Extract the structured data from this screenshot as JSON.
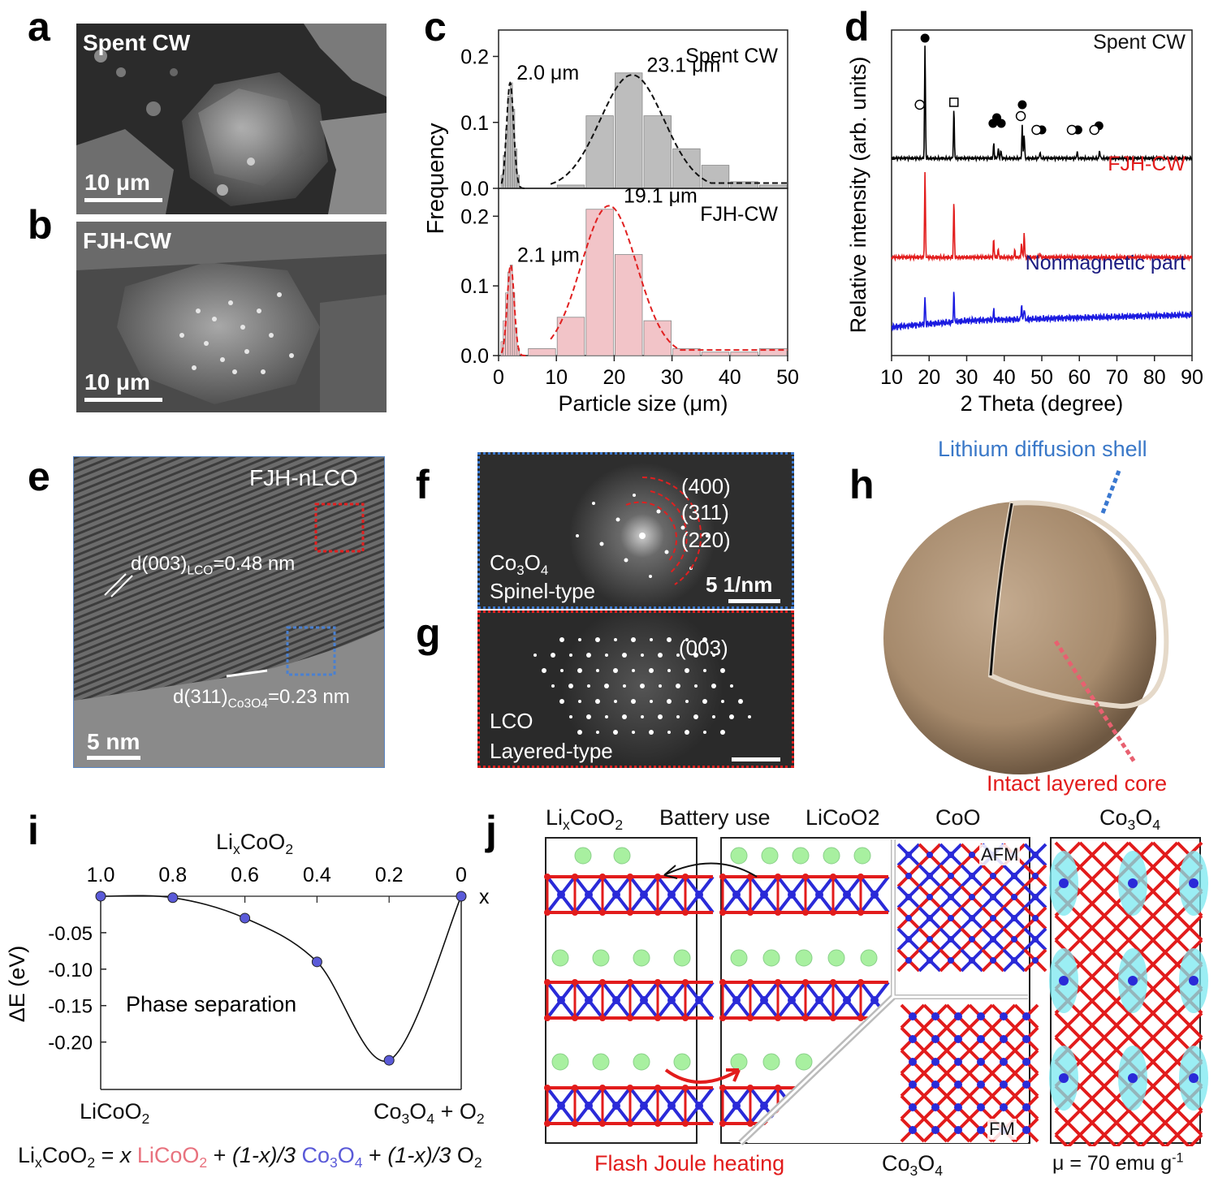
{
  "panels": {
    "a": {
      "label": "a",
      "title": "Spent CW",
      "scale": "10 μm"
    },
    "b": {
      "label": "b",
      "title": "FJH-CW",
      "scale": "10 μm"
    },
    "c": {
      "label": "c"
    },
    "d": {
      "label": "d"
    },
    "e": {
      "label": "e",
      "title": "FJH-nLCO",
      "d003": "d(003)",
      "d003_sub": "LCO",
      "d003_val": "=0.48 nm",
      "d311": "d(311)",
      "d311_sub": "Co3O4",
      "d311_val": "=0.23 nm",
      "scale": "5 nm"
    },
    "f": {
      "label": "f",
      "rings": [
        "(400)",
        "(311)",
        "(220)"
      ],
      "name_main": "Co",
      "name_sub1": "3",
      "name_mid": "O",
      "name_sub2": "4",
      "type": "Spinel-type",
      "scale": "5 1/nm"
    },
    "g": {
      "label": "g",
      "ring": "(003)",
      "name": "LCO",
      "type": "Layered-type"
    },
    "h": {
      "label": "h",
      "shell": "Lithium diffusion shell",
      "core": "Intact layered core"
    },
    "i": {
      "label": "i",
      "top_axis_main": "Li",
      "top_axis_sub": "x",
      "top_axis_rest": "CoO",
      "top_axis_sub2": "2",
      "y_label": "ΔE (eV)",
      "x_var": "x",
      "phase": "Phase separation",
      "left_end": "LiCoO",
      "left_end_sub": "2",
      "right_end_a": "Co",
      "right_end_sub1": "3",
      "right_end_b": "O",
      "right_end_sub2": "4",
      "right_end_c": " + O",
      "right_end_sub3": "2"
    },
    "j": {
      "label": "j",
      "h_lixcoo2": "LixCoO2",
      "h_battery": "Battery use",
      "h_licoo2": "LiCoO2",
      "h_coo": "CoO",
      "h_co3o4": "Co3O4",
      "afm": "AFM",
      "fm": "FM",
      "flash": "Flash Joule heating",
      "bottom_co3o4": "Co3O4",
      "mu": "μ = 70 emu g-1"
    }
  },
  "equation": {
    "lhs": "Li",
    "lhs_sub": "x",
    "lhs_rest": "CoO",
    "lhs_sub2": "2",
    "eq": " = ",
    "t1_coef": "x ",
    "t1": "LiCoO",
    "t1_sub": "2",
    "plus1": " + ",
    "t2_coef": "(1-x)/3 ",
    "t2": "Co",
    "t2_sub1": "3",
    "t2_b": "O",
    "t2_sub2": "4",
    "plus2": " + ",
    "t3_coef": "(1-x)/3 ",
    "t3": " O",
    "t3_sub": "2",
    "pink": "#e8727e",
    "blue": "#5a5ad8"
  },
  "chart_data": [
    {
      "type": "bar",
      "panel": "c-top",
      "title": "Spent CW",
      "xlabel": "Particle size (μm)",
      "ylabel": "Frequency",
      "xlim": [
        0,
        50
      ],
      "ylim": [
        0,
        0.24
      ],
      "xticks": [
        0,
        10,
        20,
        30,
        40,
        50
      ],
      "yticks": [
        "0.0",
        "0.1",
        "0.2"
      ],
      "bar_color": "#bdbdbd",
      "fit_color": "#111111",
      "small_bins_x": [
        0.6,
        1.0,
        1.4,
        1.8,
        2.2,
        2.6,
        3.0,
        3.4
      ],
      "small_bins_values": [
        0.02,
        0.05,
        0.09,
        0.14,
        0.16,
        0.12,
        0.06,
        0.02
      ],
      "bins_x": [
        12.5,
        17.5,
        22.5,
        27.5,
        32.5,
        37.5,
        42.5,
        47.5
      ],
      "bins_values": [
        0.005,
        0.11,
        0.175,
        0.11,
        0.06,
        0.035,
        0.01,
        0.005
      ],
      "fit1": {
        "mean": 2.0,
        "sd": 0.6,
        "peak": 0.16
      },
      "fit2": {
        "mean": 23.1,
        "sd": 5.5,
        "peak": 0.172
      },
      "fit_floor": 0.008,
      "annotations": [
        "2.0 μm",
        "23.1 μm"
      ]
    },
    {
      "type": "bar",
      "panel": "c-bottom",
      "title": "FJH-CW",
      "xlabel": "Particle size (μm)",
      "ylabel": "Frequency",
      "xlim": [
        0,
        50
      ],
      "ylim": [
        0,
        0.24
      ],
      "xticks": [
        "0",
        "10",
        "20",
        "30",
        "40",
        "50"
      ],
      "yticks": [
        "0.0",
        "0.1",
        "0.2"
      ],
      "bar_color": "#f2c4c8",
      "fit_color": "#e02020",
      "small_bins_x": [
        0.6,
        1.0,
        1.4,
        1.8,
        2.2,
        2.6,
        3.0,
        3.4
      ],
      "small_bins_values": [
        0.02,
        0.05,
        0.09,
        0.12,
        0.13,
        0.09,
        0.04,
        0.01
      ],
      "bins_x": [
        7.5,
        12.5,
        17.5,
        22.5,
        27.5,
        32.5,
        37.5,
        42.5,
        47.5
      ],
      "bins_values": [
        0.01,
        0.055,
        0.21,
        0.145,
        0.05,
        0.01,
        0.005,
        0.005,
        0.01
      ],
      "fit1": {
        "mean": 2.1,
        "sd": 0.6,
        "peak": 0.13
      },
      "fit2": {
        "mean": 19.1,
        "sd": 4.8,
        "peak": 0.215
      },
      "fit_floor": 0.008,
      "annotations": [
        "2.1 μm",
        "19.1 μm"
      ]
    },
    {
      "type": "line",
      "panel": "d",
      "xlabel": "2 Theta (degree)",
      "ylabel": "Relative intensity (arb. units)",
      "xlim": [
        10,
        90
      ],
      "xticks": [
        "10",
        "20",
        "30",
        "40",
        "50",
        "60",
        "70",
        "80",
        "90"
      ],
      "series": [
        {
          "name": "Spent CW",
          "color": "#000000",
          "baseline": 175,
          "peaks": [
            [
              18.9,
              140
            ],
            [
              26.6,
              60
            ],
            [
              37.2,
              18
            ],
            [
              38.4,
              12
            ],
            [
              39.1,
              10
            ],
            [
              44.8,
              40
            ],
            [
              45.3,
              30
            ],
            [
              49.5,
              8
            ],
            [
              59.4,
              8
            ],
            [
              65.4,
              10
            ]
          ],
          "noise": 2
        },
        {
          "name": "FJH-CW",
          "color": "#e21c1c",
          "baseline": 297,
          "peaks": [
            [
              18.9,
              105
            ],
            [
              26.6,
              70
            ],
            [
              37.2,
              22
            ],
            [
              38.4,
              10
            ],
            [
              42.8,
              8
            ],
            [
              44.6,
              18
            ],
            [
              45.3,
              30
            ],
            [
              49.5,
              5
            ]
          ],
          "noise": 2.5
        },
        {
          "name": "Nonmagnetic part",
          "color": "#1a1ae0",
          "baseline": 375,
          "peaks": [
            [
              18.9,
              33
            ],
            [
              26.6,
              35
            ],
            [
              37.2,
              12
            ],
            [
              44.6,
              18
            ],
            [
              45.3,
              14
            ]
          ],
          "noise": 4
        }
      ],
      "series_label_colors": [
        "#111111",
        "#e21c1c",
        "#1a1a80"
      ]
    },
    {
      "type": "scatter",
      "panel": "i",
      "xlabel": "LixCoO2",
      "ylabel": "ΔE (eV)",
      "x": [
        1.0,
        0.8,
        0.6,
        0.4,
        0.2,
        0.0
      ],
      "y": [
        0.0,
        -0.002,
        -0.03,
        -0.09,
        -0.225,
        0.0
      ],
      "xticks": [
        "1.0",
        "0.8",
        "0.6",
        "0.4",
        "0.2",
        "0"
      ],
      "yticks": [
        "-0.05",
        "-0.10",
        "-0.15",
        "-0.20"
      ],
      "xlim": [
        1.0,
        0.0
      ],
      "ylim": [
        -0.265,
        0.0
      ],
      "marker_color": "#5a5ad8"
    }
  ]
}
